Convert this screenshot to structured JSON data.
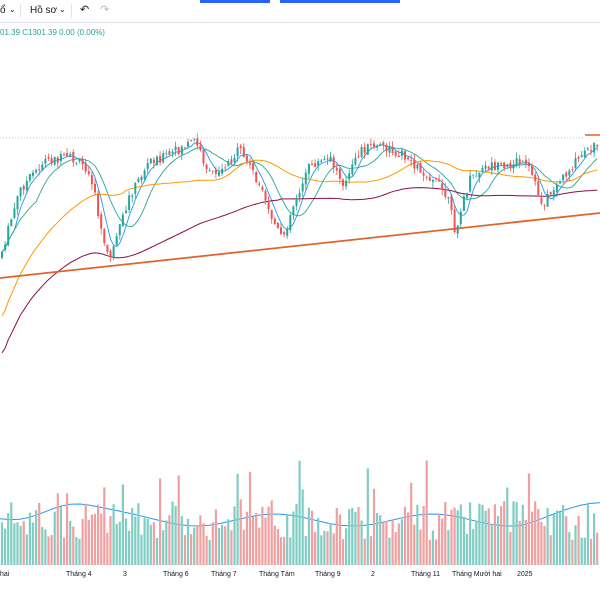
{
  "toolbar": {
    "symbol_fragment": "ổ",
    "profile_label": "Hồ sơ",
    "undo_icon": "undo-icon",
    "redo_icon": "redo-icon",
    "chevron_icon": "chevron-down-icon"
  },
  "ohlc_legend": "01.39 C1301.39 0.00 (0.00%)",
  "chart_data": {
    "type": "candlestick",
    "x_tick_labels": [
      "hai",
      "Tháng 4",
      "3",
      "Tháng 6",
      "Tháng 7",
      "Tháng Tám",
      "Tháng 9",
      "2",
      "Tháng 11",
      "Tháng Mười hai",
      "2025"
    ],
    "last_close": 1301.39,
    "change": 0.0,
    "change_percent": 0.0,
    "overlays": [
      {
        "name": "ma-short",
        "color": "#2196f3"
      },
      {
        "name": "ma-mid",
        "color": "#26a69a"
      },
      {
        "name": "ma-long",
        "color": "#ff9800"
      },
      {
        "name": "ma-very-long",
        "color": "#880e4f"
      }
    ],
    "trendlines": [
      {
        "kind": "ascending-support",
        "color": "#e0652b"
      },
      {
        "kind": "horizontal-resistance",
        "style": "dotted",
        "color": "#b2b5be"
      },
      {
        "kind": "horizontal-resistance-marker",
        "color": "#e0652b"
      }
    ],
    "up_color": "#26a69a",
    "down_color": "#ef5350",
    "volume_up_color": "#7fcdc3",
    "volume_down_color": "#f0a0a0",
    "volume_ma_color": "#2196f3",
    "grid": false
  }
}
